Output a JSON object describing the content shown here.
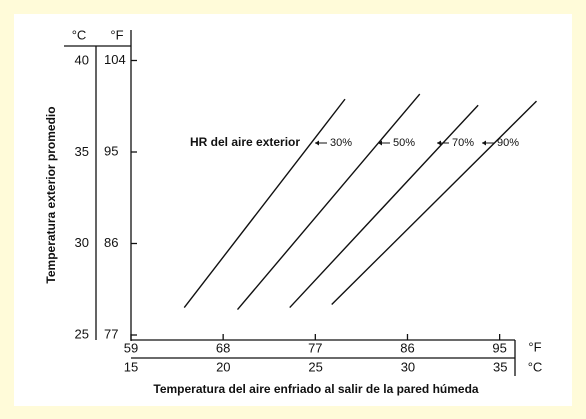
{
  "chart_data": {
    "type": "line",
    "y_label": "Temperatura exterior promedio",
    "x_label": "Temperatura del aire enfriado al salir de la pared húmeda",
    "annotation": "HR del aire exterior",
    "y_unit": "°F",
    "y2_unit": "°C",
    "x_unit": "°F",
    "x2_unit": "°C",
    "xlim": [
      59,
      96.5
    ],
    "xticks": [
      59,
      68,
      77,
      86,
      95
    ],
    "x2lim": [
      15,
      35.8
    ],
    "x2ticks": [
      15,
      20,
      25,
      30,
      35
    ],
    "ylim": [
      77,
      107
    ],
    "yticks": [
      77,
      86,
      95,
      104
    ],
    "y2lim": [
      25,
      41.7
    ],
    "y2ticks": [
      25,
      30,
      35,
      40
    ],
    "series": [
      {
        "name": "30%",
        "color": "#111111",
        "x": [
          64.2,
          79.9
        ],
        "y": [
          79.7,
          100.2
        ]
      },
      {
        "name": "50%",
        "color": "#111111",
        "x": [
          69.4,
          87.2
        ],
        "y": [
          79.5,
          100.7
        ]
      },
      {
        "name": "70%",
        "color": "#111111",
        "x": [
          74.5,
          92.9
        ],
        "y": [
          79.7,
          99.6
        ]
      },
      {
        "name": "90%",
        "color": "#111111",
        "x": [
          78.6,
          98.6
        ],
        "y": [
          80.0,
          100.0
        ]
      }
    ]
  }
}
